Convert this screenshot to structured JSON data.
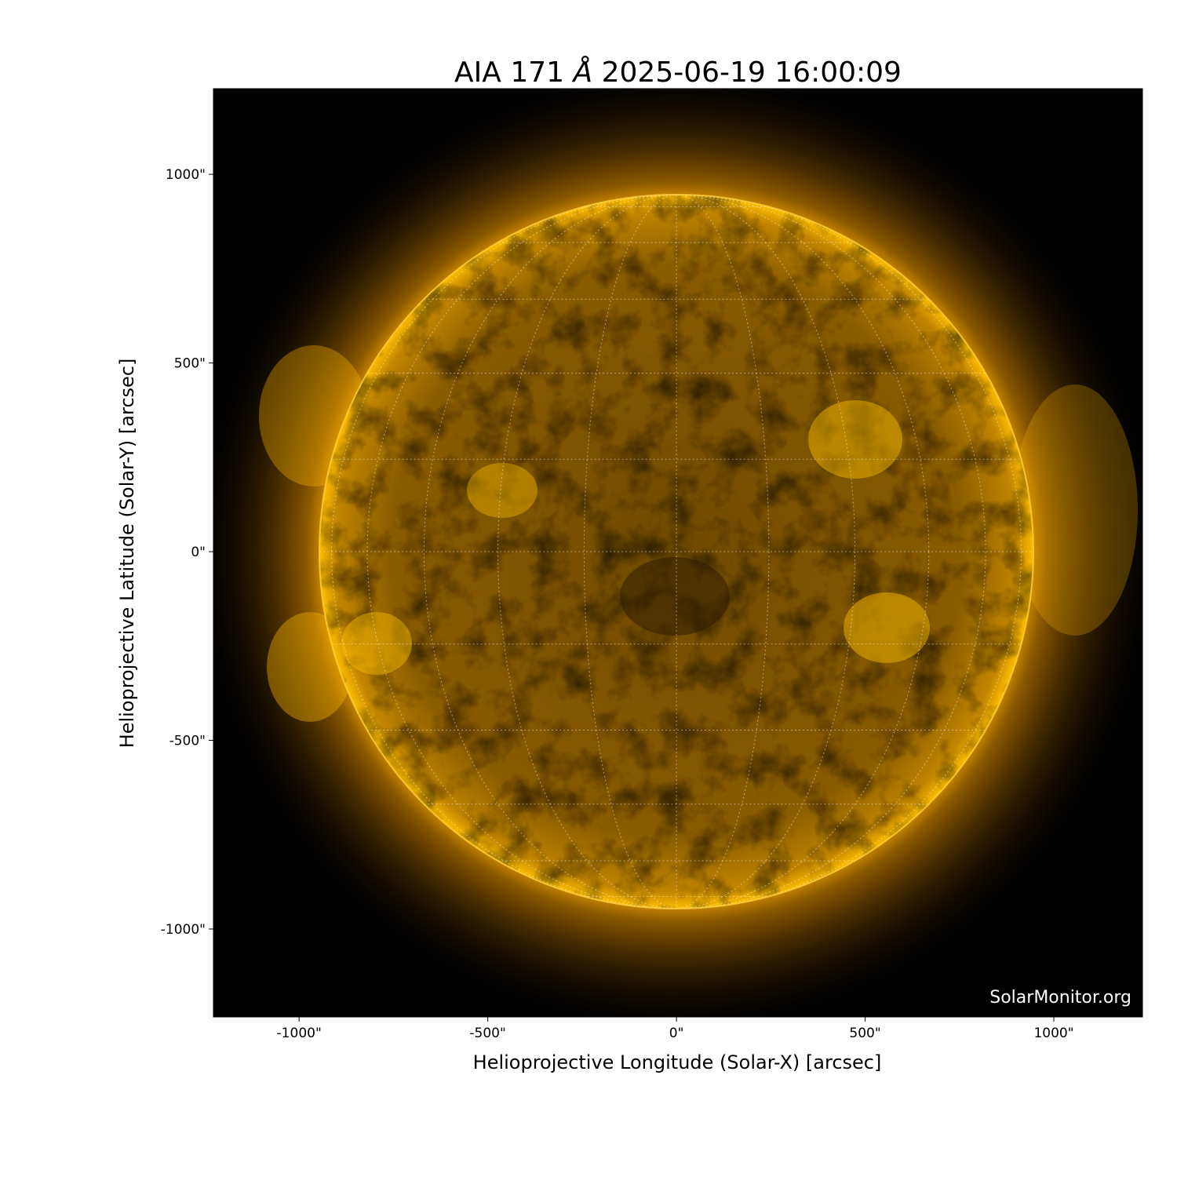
{
  "chart_data": {
    "type": "image",
    "title_prefix": "AIA 171 ",
    "title_unit": "Å",
    "title_date": " 2025-06-19 16:00:09",
    "xlabel": "Helioprojective Longitude (Solar-X) [arcsec]",
    "ylabel": "Helioprojective Latitude (Solar-Y) [arcsec]",
    "xlim": [
      -1227,
      1235
    ],
    "ylim": [
      -1233,
      1227
    ],
    "xticks": [
      {
        "value": -1000,
        "label": "-1000\""
      },
      {
        "value": -500,
        "label": "-500\""
      },
      {
        "value": 0,
        "label": "0\""
      },
      {
        "value": 500,
        "label": "500\""
      },
      {
        "value": 1000,
        "label": "1000\""
      }
    ],
    "yticks": [
      {
        "value": 1000,
        "label": "1000\""
      },
      {
        "value": 500,
        "label": "500\""
      },
      {
        "value": 0,
        "label": "0\""
      },
      {
        "value": -500,
        "label": "-500\""
      },
      {
        "value": -1000,
        "label": "-1000\""
      }
    ],
    "solar_radius_arcsec": 946,
    "grid_spacing_deg": 15,
    "colormap": "sdoaia171",
    "colors": {
      "background": "#000000",
      "disk": "#b07800",
      "bright": "#ffc000",
      "grid": "#ffffff"
    },
    "watermark": "SolarMonitor.org"
  }
}
